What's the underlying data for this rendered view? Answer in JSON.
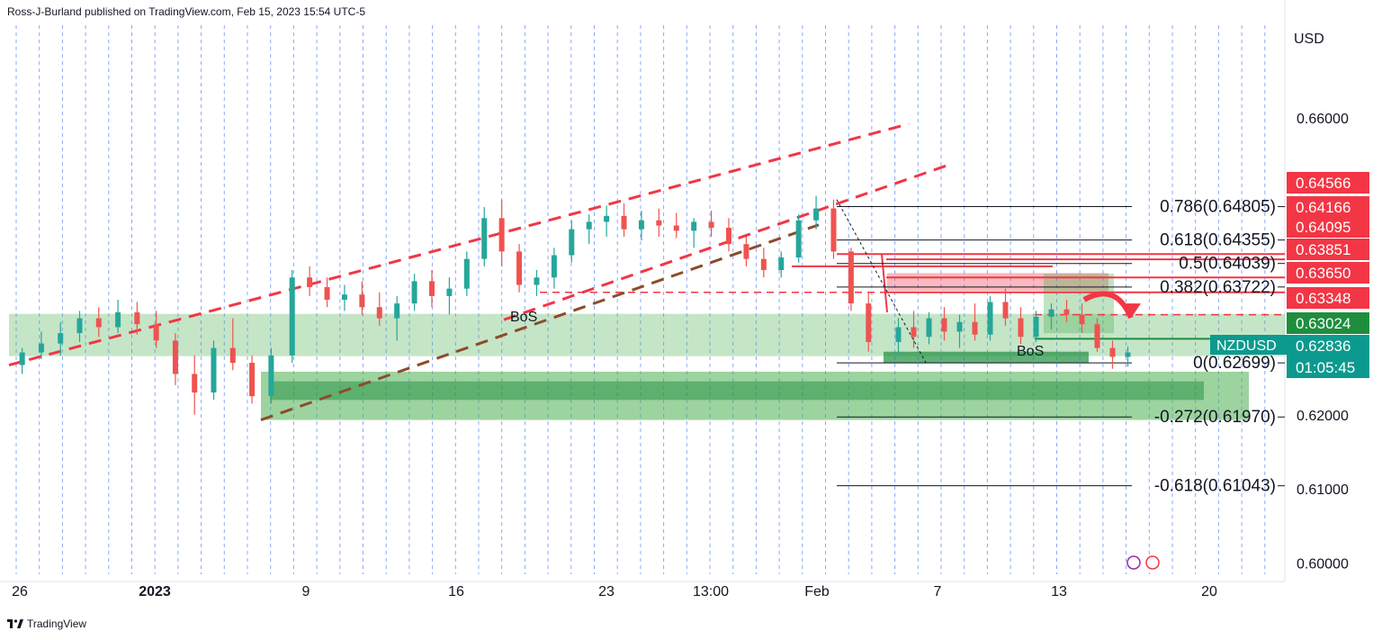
{
  "header": {
    "published": "Ross-J-Burland published on TradingView.com, Feb 15, 2023 15:54 UTC-5"
  },
  "footer": {
    "brand": "TradingView",
    "logo_icon": "tradingview-logo-icon"
  },
  "colors": {
    "bull": "#26a69a",
    "bear": "#ef5350",
    "grid": "#2962ff",
    "channel": "#f23645",
    "zone_green": "#4caf50",
    "zone_red": "#f23645",
    "price_badge": "#0c9a8e",
    "dark_green": "#1e8e3e"
  },
  "chart_data": {
    "type": "candlestick",
    "symbol": "NZDUSD",
    "currency": "USD",
    "y_ticks": [
      "0.66000",
      "0.62000",
      "0.61000",
      "0.60000"
    ],
    "ylim": [
      0.5985,
      0.6725
    ],
    "x_ticks": [
      "26",
      "2023",
      "9",
      "16",
      "23",
      "13:00",
      "Feb",
      "7",
      "13",
      "20"
    ],
    "price_labels": [
      {
        "value": "0.64566",
        "color": "#f23645"
      },
      {
        "value": "0.64166",
        "color": "#f23645"
      },
      {
        "value": "0.64095",
        "color": "#f23645"
      },
      {
        "value": "0.63851",
        "color": "#f23645"
      },
      {
        "value": "0.63650",
        "color": "#f23645"
      },
      {
        "value": "0.63348",
        "color": "#f23645"
      },
      {
        "value": "0.63024",
        "color": "#1e8e3e"
      }
    ],
    "current": {
      "symbol": "NZDUSD",
      "price": "0.62836",
      "countdown": "01:05:45"
    },
    "fib_levels": [
      {
        "label": "0.786(0.64805)",
        "price": 0.64805
      },
      {
        "label": "0.618(0.64355)",
        "price": 0.64355
      },
      {
        "label": "0.5(0.64039)",
        "price": 0.64039
      },
      {
        "label": "0.382(0.63722)",
        "price": 0.63722
      },
      {
        "label": "0(0.62699)",
        "price": 0.62699
      },
      {
        "label": "-0.272(0.61970)",
        "price": 0.6197
      },
      {
        "label": "-0.618(0.61043)",
        "price": 0.61043
      }
    ],
    "annotations": [
      "BoS",
      "BoS"
    ],
    "zones": [
      {
        "name": "demand-zone-wide",
        "from": 0.6279,
        "to": 0.6336
      },
      {
        "name": "demand-zone-lower",
        "from": 0.6193,
        "to": 0.6258
      },
      {
        "name": "supply-zone-red",
        "from": 0.6367,
        "to": 0.6391
      }
    ],
    "series": [
      {
        "name": "NZDUSD",
        "ohlc": [
          [
            0.6267,
            0.629,
            0.6255,
            0.6284
          ],
          [
            0.6284,
            0.6312,
            0.6275,
            0.6296
          ],
          [
            0.6296,
            0.6325,
            0.628,
            0.631
          ],
          [
            0.631,
            0.634,
            0.6298,
            0.633
          ],
          [
            0.633,
            0.6345,
            0.6305,
            0.6318
          ],
          [
            0.6318,
            0.6355,
            0.631,
            0.6338
          ],
          [
            0.6338,
            0.6352,
            0.6308,
            0.6322
          ],
          [
            0.6322,
            0.634,
            0.629,
            0.63
          ],
          [
            0.63,
            0.631,
            0.624,
            0.6255
          ],
          [
            0.6255,
            0.628,
            0.62,
            0.623
          ],
          [
            0.623,
            0.63,
            0.622,
            0.629
          ],
          [
            0.629,
            0.633,
            0.626,
            0.627
          ],
          [
            0.627,
            0.628,
            0.6215,
            0.6225
          ],
          [
            0.6225,
            0.629,
            0.6215,
            0.628
          ],
          [
            0.628,
            0.6395,
            0.627,
            0.6385
          ],
          [
            0.6385,
            0.64,
            0.636,
            0.6372
          ],
          [
            0.6372,
            0.6385,
            0.6345,
            0.6355
          ],
          [
            0.6355,
            0.6375,
            0.634,
            0.6362
          ],
          [
            0.6362,
            0.638,
            0.6335,
            0.6345
          ],
          [
            0.6345,
            0.6365,
            0.632,
            0.633
          ],
          [
            0.633,
            0.636,
            0.63,
            0.635
          ],
          [
            0.635,
            0.639,
            0.634,
            0.638
          ],
          [
            0.638,
            0.6395,
            0.6345,
            0.636
          ],
          [
            0.636,
            0.6385,
            0.6335,
            0.637
          ],
          [
            0.637,
            0.642,
            0.636,
            0.641
          ],
          [
            0.641,
            0.648,
            0.64,
            0.6465
          ],
          [
            0.6465,
            0.649,
            0.64,
            0.642
          ],
          [
            0.642,
            0.643,
            0.6365,
            0.6375
          ],
          [
            0.6375,
            0.6395,
            0.636,
            0.6385
          ],
          [
            0.6385,
            0.6425,
            0.637,
            0.6415
          ],
          [
            0.6415,
            0.6462,
            0.6405,
            0.645
          ],
          [
            0.645,
            0.647,
            0.643,
            0.646
          ],
          [
            0.646,
            0.6482,
            0.644,
            0.6468
          ],
          [
            0.6468,
            0.6485,
            0.644,
            0.645
          ],
          [
            0.645,
            0.6475,
            0.6435,
            0.6462
          ],
          [
            0.6462,
            0.6478,
            0.644,
            0.6455
          ],
          [
            0.6455,
            0.6472,
            0.6438,
            0.6448
          ],
          [
            0.6448,
            0.6465,
            0.6425,
            0.646
          ],
          [
            0.646,
            0.6475,
            0.644,
            0.6452
          ],
          [
            0.6452,
            0.6465,
            0.642,
            0.643
          ],
          [
            0.643,
            0.644,
            0.64,
            0.641
          ],
          [
            0.641,
            0.6425,
            0.6385,
            0.6395
          ],
          [
            0.6395,
            0.642,
            0.6385,
            0.6412
          ],
          [
            0.6412,
            0.647,
            0.6405,
            0.6462
          ],
          [
            0.6462,
            0.6495,
            0.645,
            0.6478
          ],
          [
            0.6478,
            0.649,
            0.641,
            0.642
          ],
          [
            0.642,
            0.6425,
            0.634,
            0.635
          ],
          [
            0.635,
            0.6365,
            0.6285,
            0.6298
          ],
          [
            0.6298,
            0.633,
            0.628,
            0.6318
          ],
          [
            0.6318,
            0.634,
            0.629,
            0.6305
          ],
          [
            0.6305,
            0.6338,
            0.6295,
            0.633
          ],
          [
            0.633,
            0.6345,
            0.63,
            0.6312
          ],
          [
            0.6312,
            0.6335,
            0.629,
            0.6325
          ],
          [
            0.6325,
            0.635,
            0.63,
            0.6308
          ],
          [
            0.6308,
            0.636,
            0.63,
            0.6352
          ],
          [
            0.6352,
            0.637,
            0.632,
            0.633
          ],
          [
            0.633,
            0.6345,
            0.6295,
            0.6305
          ],
          [
            0.6305,
            0.634,
            0.6298,
            0.6332
          ],
          [
            0.6332,
            0.635,
            0.6315,
            0.6342
          ],
          [
            0.6342,
            0.6355,
            0.6325,
            0.6335
          ],
          [
            0.6335,
            0.635,
            0.631,
            0.6322
          ],
          [
            0.6322,
            0.633,
            0.6285,
            0.629
          ],
          [
            0.629,
            0.63,
            0.6262,
            0.6278
          ],
          [
            0.6278,
            0.6292,
            0.6265,
            0.6284
          ]
        ]
      }
    ]
  }
}
